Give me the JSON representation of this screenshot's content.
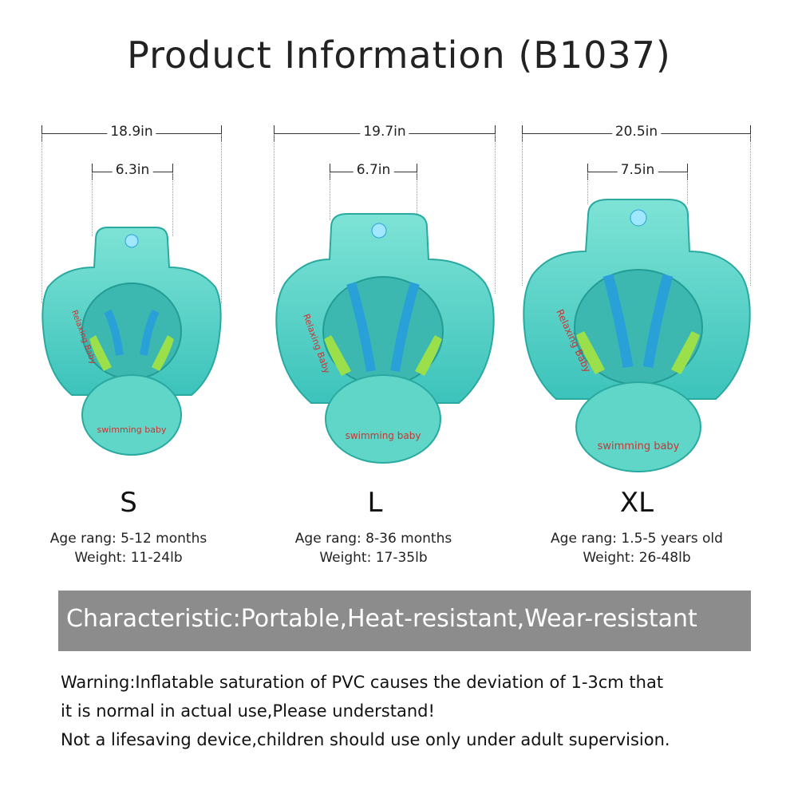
{
  "title": "Product Information (B1037)",
  "products": [
    {
      "size": "S",
      "outer_width": "18.9in",
      "inner_width": "6.3in",
      "age": "Age rang: 5-12 months",
      "weight": "Weight: 11-24lb"
    },
    {
      "size": "L",
      "outer_width": "19.7in",
      "inner_width": "6.7in",
      "age": "Age rang: 8-36 months",
      "weight": "Weight: 17-35lb"
    },
    {
      "size": "XL",
      "outer_width": "20.5in",
      "inner_width": "7.5in",
      "age": "Age rang: 1.5-5 years old",
      "weight": "Weight: 26-48lb"
    }
  ],
  "float_print": {
    "brand": "Relaxing Baby",
    "logo_text": "swimming baby"
  },
  "characteristic": "Characteristic:Portable,Heat-resistant,Wear-resistant",
  "warnings": [
    "Warning:Inflatable saturation of PVC causes the deviation of 1-3cm that",
    "it is normal in actual use,Please understand!",
    "Not a lifesaving device,children should use only under adult supervision."
  ],
  "colors": {
    "float": "#5fd6c8",
    "float_dark": "#2fb8b0",
    "strap": "#2aa0d8",
    "lime": "#9be04a",
    "banner": "#8c8c8c"
  }
}
